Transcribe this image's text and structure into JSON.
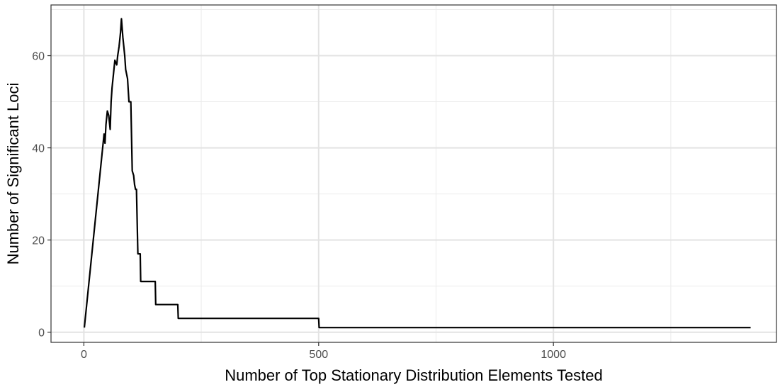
{
  "chart_data": {
    "type": "line",
    "title": "",
    "xlabel": "Number of Top Stationary Distribution Elements Tested",
    "ylabel": "Number of Significant Loci",
    "xlim": [
      -70,
      1475
    ],
    "ylim": [
      -2.2,
      71
    ],
    "x_ticks": [
      0,
      500,
      1000
    ],
    "x_tick_labels": [
      "0",
      "500",
      "1000"
    ],
    "x_minor_ticks": [
      250,
      750,
      1250
    ],
    "y_ticks": [
      0,
      20,
      40,
      60
    ],
    "y_tick_labels": [
      "0",
      "20",
      "40",
      "60"
    ],
    "y_minor_ticks": [
      10,
      30,
      50,
      70
    ],
    "grid": true,
    "legend": "none",
    "line_color": "#000000",
    "series": [
      {
        "x": [
          1,
          43,
          45,
          47,
          50,
          53,
          56,
          58,
          60,
          63,
          66,
          70,
          72,
          75,
          78,
          80,
          83,
          85,
          87,
          89,
          91,
          93,
          96,
          100,
          103,
          106,
          108,
          110,
          112,
          115,
          120,
          121,
          130,
          131,
          152,
          153,
          200,
          201,
          500,
          501,
          1420
        ],
        "y": [
          1,
          43,
          41,
          45,
          48,
          47,
          44,
          50,
          53,
          56,
          59,
          58,
          60,
          62,
          65,
          68,
          64,
          62,
          60,
          57,
          56,
          55,
          50,
          50,
          35,
          34,
          32,
          31,
          31,
          17,
          17,
          11,
          11,
          11,
          11,
          6,
          6,
          3,
          3,
          1,
          1
        ]
      }
    ]
  }
}
